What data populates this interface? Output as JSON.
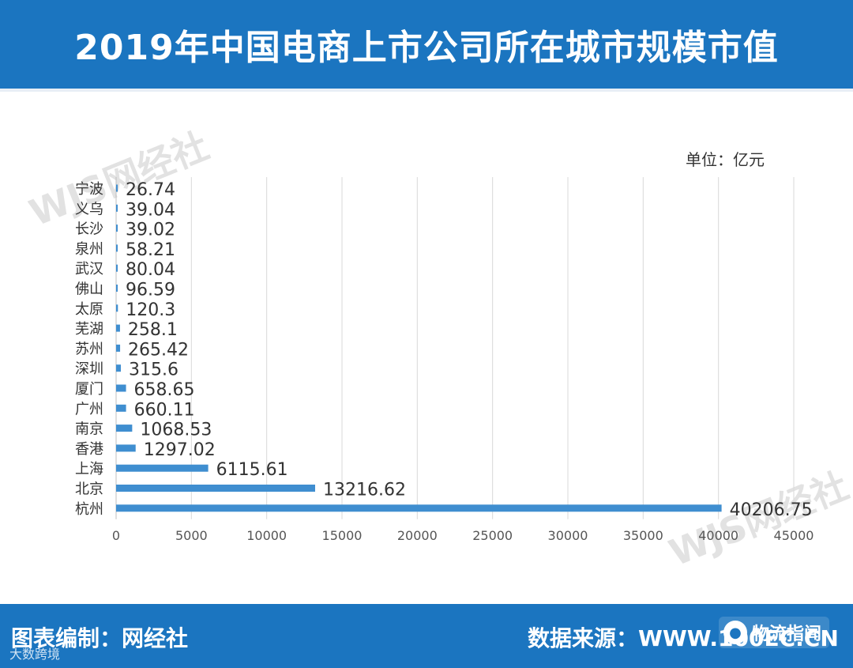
{
  "header": {
    "title": "2019年中国电商上市公司所在城市规模市值"
  },
  "unit_label": "单位：亿元",
  "watermark": {
    "text": "WJS网经社"
  },
  "footer": {
    "left": "图表编制：网经社",
    "right": "数据来源：WWW.100EC.CN",
    "badge_text": "物流指闻",
    "credit": "大数跨境"
  },
  "colors": {
    "bar": "#3f8ed0",
    "header": "#1b75c0",
    "grid": "#d9d9d9",
    "text": "#333333"
  },
  "chart_data": {
    "type": "bar",
    "orientation": "horizontal",
    "title": "2019年中国电商上市公司所在城市规模市值",
    "unit": "单位：亿元",
    "categories": [
      "宁波",
      "义乌",
      "长沙",
      "泉州",
      "武汉",
      "佛山",
      "太原",
      "芜湖",
      "苏州",
      "深圳",
      "厦门",
      "广州",
      "南京",
      "香港",
      "上海",
      "北京",
      "杭州"
    ],
    "values": [
      26.74,
      39.04,
      39.02,
      58.21,
      80.04,
      96.59,
      120.3,
      258.1,
      265.42,
      315.6,
      658.65,
      660.11,
      1068.53,
      1297.02,
      6115.61,
      13216.62,
      40206.75
    ],
    "value_labels": [
      "26.74",
      "39.04",
      "39.02",
      "58.21",
      "80.04",
      "96.59",
      "120.3",
      "258.1",
      "265.42",
      "315.6",
      "658.65",
      "660.11",
      "1068.53",
      "1297.02",
      "6115.61",
      "13216.62",
      "40206.75"
    ],
    "xlim": [
      0,
      45000
    ],
    "xticks": [
      0,
      5000,
      10000,
      15000,
      20000,
      25000,
      30000,
      35000,
      40000,
      45000
    ],
    "grid": true,
    "legend": "none"
  }
}
